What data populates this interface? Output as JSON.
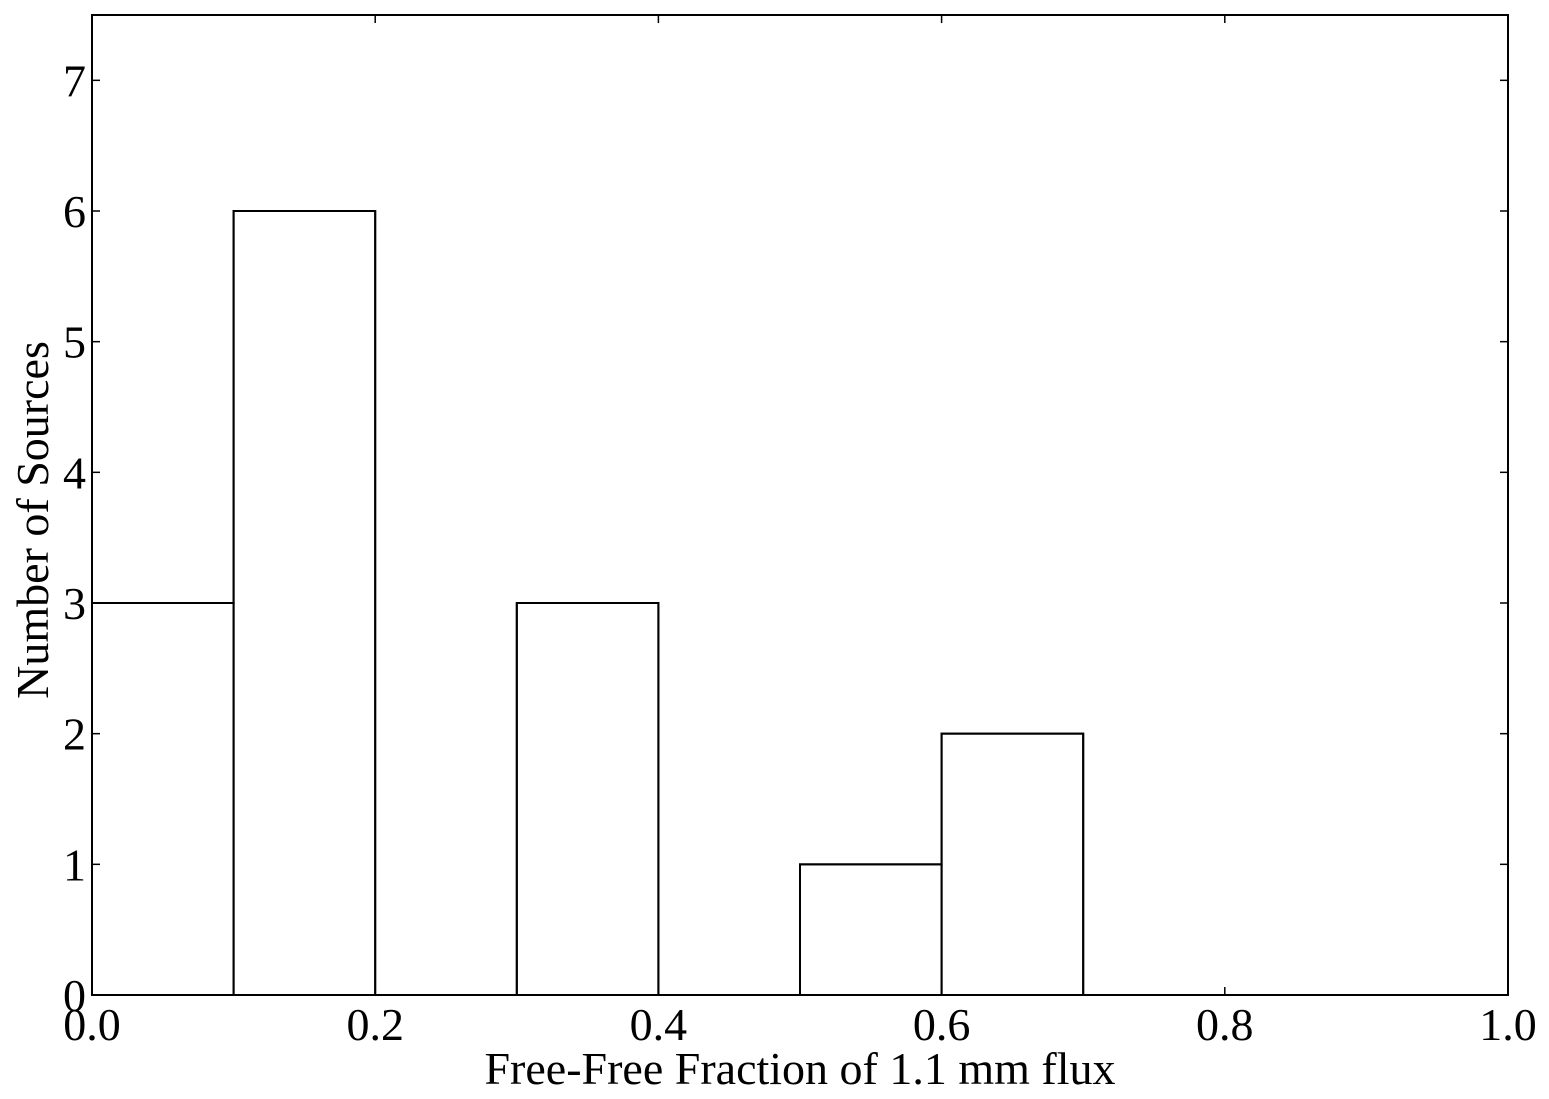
{
  "chart_data": {
    "type": "bar",
    "subtype": "step-histogram",
    "bin_edges": [
      0.0,
      0.1,
      0.2,
      0.3,
      0.4,
      0.5,
      0.6,
      0.7,
      0.8,
      0.9,
      1.0
    ],
    "values": [
      3,
      6,
      0,
      3,
      0,
      1,
      2,
      0,
      0,
      0
    ],
    "xlabel": "Free-Free Fraction of 1.1 mm flux",
    "ylabel": "Number of Sources",
    "xlim": [
      0.0,
      1.0
    ],
    "ylim": [
      0,
      7.5
    ],
    "xticks": [
      "0.0",
      "0.2",
      "0.4",
      "0.6",
      "0.8",
      "1.0"
    ],
    "yticks": [
      "0",
      "1",
      "2",
      "3",
      "4",
      "5",
      "6",
      "7"
    ],
    "grid": false,
    "colors": {
      "outline": "#000000",
      "background": "#ffffff"
    }
  }
}
